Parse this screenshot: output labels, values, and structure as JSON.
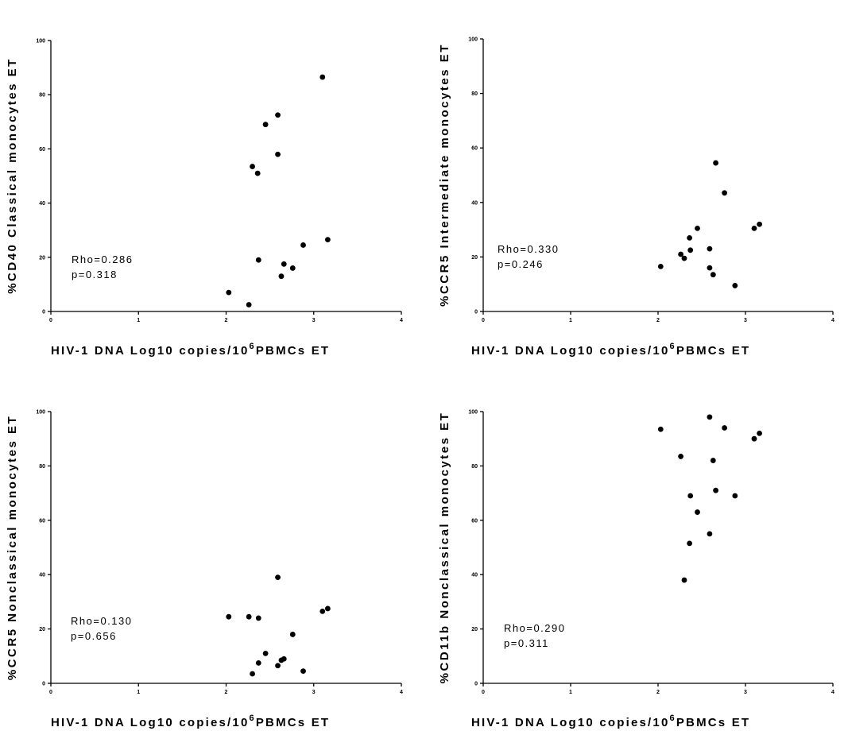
{
  "chart_data": [
    {
      "type": "scatter",
      "ylabel": "%CD40 Classical monocytes ET",
      "xlabel": {
        "pre": "HIV-1 DNA Log10 copies/10",
        "sup": "6",
        "post": "PBMCs ET"
      },
      "xlim": [
        0,
        4
      ],
      "ylim": [
        0,
        100
      ],
      "xticks": [
        0,
        1,
        2,
        3,
        4
      ],
      "yticks": [
        0,
        20,
        40,
        60,
        80,
        100
      ],
      "stat_lines": [
        "Rho=0.286",
        "p=0.318"
      ],
      "points": [
        [
          2.03,
          7
        ],
        [
          2.26,
          2.5
        ],
        [
          2.3,
          53.5
        ],
        [
          2.36,
          51
        ],
        [
          2.37,
          19
        ],
        [
          2.45,
          69
        ],
        [
          2.59,
          72.5
        ],
        [
          2.59,
          58
        ],
        [
          2.63,
          13
        ],
        [
          2.66,
          17.5
        ],
        [
          2.76,
          16
        ],
        [
          2.88,
          24.5
        ],
        [
          3.1,
          86.5
        ],
        [
          3.16,
          26.5
        ]
      ]
    },
    {
      "type": "scatter",
      "ylabel": "%CCR5 Intermediate monocytes ET",
      "xlabel": {
        "pre": "HIV-1 DNA Log10 copies/10",
        "sup": "6",
        "post": "PBMCs ET"
      },
      "xlim": [
        0,
        4
      ],
      "ylim": [
        0,
        100
      ],
      "xticks": [
        0,
        1,
        2,
        3,
        4
      ],
      "yticks": [
        0,
        20,
        40,
        60,
        80,
        100
      ],
      "stat_lines": [
        "Rho=0.330",
        "p=0.246"
      ],
      "points": [
        [
          2.03,
          16.5
        ],
        [
          2.26,
          21
        ],
        [
          2.3,
          19.5
        ],
        [
          2.36,
          27
        ],
        [
          2.37,
          22.5
        ],
        [
          2.45,
          30.5
        ],
        [
          2.59,
          23
        ],
        [
          2.59,
          16
        ],
        [
          2.63,
          13.5
        ],
        [
          2.66,
          54.5
        ],
        [
          2.76,
          43.5
        ],
        [
          2.88,
          9.5
        ],
        [
          3.1,
          30.5
        ],
        [
          3.16,
          32
        ]
      ]
    },
    {
      "type": "scatter",
      "ylabel": "%CCR5 Nonclassical monocytes ET",
      "xlabel": {
        "pre": "HIV-1 DNA Log10 copies/10",
        "sup": "6",
        "post": "PBMCs ET"
      },
      "xlim": [
        0,
        4
      ],
      "ylim": [
        0,
        100
      ],
      "xticks": [
        0,
        1,
        2,
        3,
        4
      ],
      "yticks": [
        0,
        20,
        40,
        60,
        80,
        100
      ],
      "stat_lines": [
        "Rho=0.130",
        "p=0.656"
      ],
      "points": [
        [
          2.03,
          24.5
        ],
        [
          2.26,
          24.5
        ],
        [
          2.3,
          3.5
        ],
        [
          2.37,
          24
        ],
        [
          2.37,
          7.5
        ],
        [
          2.45,
          11
        ],
        [
          2.59,
          39
        ],
        [
          2.59,
          6.5
        ],
        [
          2.63,
          8.5
        ],
        [
          2.66,
          9
        ],
        [
          2.76,
          18
        ],
        [
          2.88,
          4.5
        ],
        [
          3.1,
          26.5
        ],
        [
          3.16,
          27.5
        ]
      ]
    },
    {
      "type": "scatter",
      "ylabel": "%CD11b Nonclassical monocytes ET",
      "xlabel": {
        "pre": "HIV-1 DNA Log10 copies/10",
        "sup": "6",
        "post": "PBMCs ET"
      },
      "xlim": [
        0,
        4
      ],
      "ylim": [
        0,
        100
      ],
      "xticks": [
        0,
        1,
        2,
        3,
        4
      ],
      "yticks": [
        0,
        20,
        40,
        60,
        80,
        100
      ],
      "stat_lines": [
        "Rho=0.290",
        "p=0.311"
      ],
      "points": [
        [
          2.03,
          93.5
        ],
        [
          2.26,
          83.5
        ],
        [
          2.3,
          38
        ],
        [
          2.36,
          51.5
        ],
        [
          2.37,
          69
        ],
        [
          2.45,
          63
        ],
        [
          2.59,
          98
        ],
        [
          2.59,
          55
        ],
        [
          2.63,
          82
        ],
        [
          2.66,
          71
        ],
        [
          2.76,
          94
        ],
        [
          2.88,
          69
        ],
        [
          3.1,
          90
        ],
        [
          3.16,
          92
        ]
      ]
    }
  ]
}
